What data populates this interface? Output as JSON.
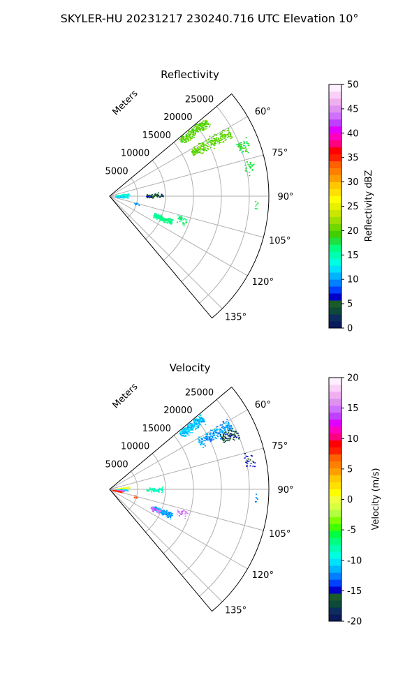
{
  "figure": {
    "title": "SKYLER-HU  20231217  230240.716 UTC Elevation 10°"
  },
  "panels": [
    {
      "title": "Reflectivity",
      "range_axis_label": "Meters",
      "colorbar": {
        "label": "Reflectivity dBZ",
        "min": 0,
        "max": 50,
        "ticks": [
          0,
          5,
          10,
          15,
          20,
          25,
          30,
          35,
          40,
          45,
          50
        ],
        "colors": [
          "#0a1a5a",
          "#0d2c5c",
          "#0c4a3a",
          "#1b5a2a",
          "#0000c8",
          "#0040ff",
          "#0080ff",
          "#00b4ff",
          "#00e0ff",
          "#00ffe0",
          "#00ffb0",
          "#00ff80",
          "#20e040",
          "#40d000",
          "#70d800",
          "#a0e000",
          "#c8e800",
          "#e8f000",
          "#ffff00",
          "#ffe000",
          "#ffc800",
          "#ffa000",
          "#ff8000",
          "#ff6000",
          "#ff2000",
          "#ff0000",
          "#ff0080",
          "#ff00c0",
          "#e000ff",
          "#c040ff",
          "#d070ff",
          "#e090f0",
          "#f0b0f0",
          "#f8d0f8",
          "#fff0ff"
        ]
      }
    },
    {
      "title": "Velocity",
      "range_axis_label": "Meters",
      "colorbar": {
        "label": "Velocity (m/s)",
        "min": -20,
        "max": 20,
        "ticks": [
          -20,
          -15,
          -10,
          -5,
          0,
          5,
          10,
          15,
          20
        ],
        "colors": [
          "#0a1a5a",
          "#0d2c5c",
          "#0c4a3a",
          "#1b5a2a",
          "#0000c8",
          "#0040ff",
          "#0080ff",
          "#00b4ff",
          "#00e0ff",
          "#00ffe0",
          "#00ffb0",
          "#00ff80",
          "#00ff40",
          "#40ff00",
          "#80ff00",
          "#b0ff40",
          "#d8ff40",
          "#f0ff40",
          "#ffff00",
          "#ffe000",
          "#ffc800",
          "#ffa000",
          "#ff8000",
          "#ff6000",
          "#ff2000",
          "#ff0000",
          "#ff0080",
          "#ff00c0",
          "#e000ff",
          "#c040ff",
          "#d070ff",
          "#e090f0",
          "#f0b0f0",
          "#f8d0f8",
          "#fff0ff"
        ]
      }
    }
  ],
  "chart_data": [
    {
      "type": "scatter",
      "projection": "polar-sector",
      "title": "Reflectivity",
      "range_label": "Meters",
      "range_max": 28500,
      "range_ticks": [
        5000,
        10000,
        15000,
        20000,
        25000
      ],
      "azimuth_range": [
        50,
        140
      ],
      "azimuth_ticks": [
        60,
        75,
        90,
        105,
        120,
        135
      ],
      "grid": true,
      "value_label": "Reflectivity dBZ",
      "value_range": [
        0,
        50
      ],
      "echoes": [
        {
          "az": 52,
          "r": [
            16000,
            22000
          ],
          "value": 20,
          "density": 260
        },
        {
          "az": 62,
          "r": [
            16500,
            24500
          ],
          "value": 20,
          "density": 220
        },
        {
          "az": 69,
          "r": [
            24500,
            26500
          ],
          "value": 18,
          "density": 50
        },
        {
          "az": 78,
          "r": [
            24500,
            26500
          ],
          "value": 18,
          "density": 25
        },
        {
          "az": 94,
          "r": [
            26000,
            26500
          ],
          "value": 18,
          "density": 6
        },
        {
          "az": 84,
          "r": [
            1000,
            3500
          ],
          "value": 14,
          "density": 90
        },
        {
          "az": 93,
          "r": [
            1000,
            3200
          ],
          "value": 12,
          "density": 70
        },
        {
          "az": 89,
          "r": [
            6500,
            9500
          ],
          "value": 5,
          "density": 60
        },
        {
          "az": 113,
          "r": [
            8500,
            12000
          ],
          "value": 16,
          "density": 170
        },
        {
          "az": 108,
          "r": [
            12500,
            14500
          ],
          "value": 17,
          "density": 30
        },
        {
          "az": 106,
          "r": [
            4500,
            5500
          ],
          "value": 10,
          "density": 8
        }
      ]
    },
    {
      "type": "scatter",
      "projection": "polar-sector",
      "title": "Velocity",
      "range_label": "Meters",
      "range_max": 28500,
      "range_ticks": [
        5000,
        10000,
        15000,
        20000,
        25000
      ],
      "azimuth_range": [
        50,
        140
      ],
      "azimuth_ticks": [
        60,
        75,
        90,
        105,
        120,
        135
      ],
      "grid": true,
      "value_label": "Velocity (m/s)",
      "value_range": [
        -20,
        20
      ],
      "echoes": [
        {
          "az": 52,
          "r": [
            16000,
            21000
          ],
          "value": -11,
          "density": 240
        },
        {
          "az": 62,
          "r": [
            18000,
            24500
          ],
          "value": -12,
          "density": 200
        },
        {
          "az": 66,
          "r": [
            22000,
            25000
          ],
          "value": -16,
          "density": 80
        },
        {
          "az": 78,
          "r": [
            24500,
            26500
          ],
          "value": -15,
          "density": 25
        },
        {
          "az": 94,
          "r": [
            26000,
            26500
          ],
          "value": -12,
          "density": 6
        },
        {
          "az": 84,
          "r": [
            1000,
            3500
          ],
          "value": 0,
          "density": 80
        },
        {
          "az": 92,
          "r": [
            1000,
            3200
          ],
          "value": -10,
          "density": 60
        },
        {
          "az": 96,
          "r": [
            800,
            2600
          ],
          "value": 15,
          "density": 50
        },
        {
          "az": 102,
          "r": [
            500,
            2200
          ],
          "value": 8,
          "density": 40
        },
        {
          "az": 90,
          "r": [
            6500,
            9500
          ],
          "value": -8,
          "density": 50
        },
        {
          "az": 113,
          "r": [
            8500,
            12000
          ],
          "value": -12,
          "density": 150
        },
        {
          "az": 114,
          "r": [
            8000,
            9800
          ],
          "value": 15,
          "density": 40
        },
        {
          "az": 108,
          "r": [
            12500,
            14500
          ],
          "value": 15,
          "density": 30
        },
        {
          "az": 106,
          "r": [
            4500,
            5500
          ],
          "value": 8,
          "density": 8
        }
      ]
    }
  ]
}
